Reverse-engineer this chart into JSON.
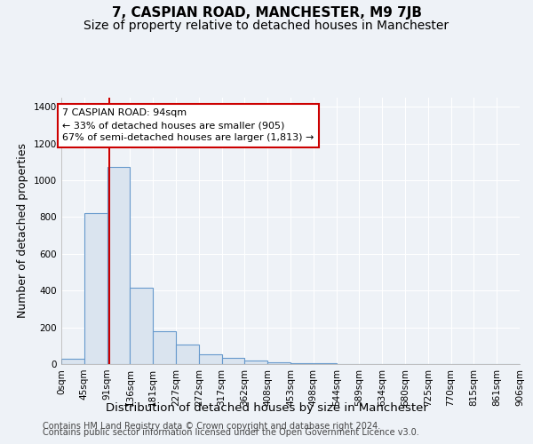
{
  "title": "7, CASPIAN ROAD, MANCHESTER, M9 7JB",
  "subtitle": "Size of property relative to detached houses in Manchester",
  "xlabel": "Distribution of detached houses by size in Manchester",
  "ylabel": "Number of detached properties",
  "bin_edges": [
    0,
    45,
    91,
    136,
    181,
    227,
    272,
    317,
    362,
    408,
    453,
    498,
    544,
    589,
    634,
    680,
    725,
    770,
    815,
    861,
    906
  ],
  "bar_heights": [
    30,
    820,
    1075,
    415,
    180,
    105,
    55,
    35,
    20,
    10,
    5,
    3,
    2,
    2,
    1,
    1,
    1,
    1,
    1,
    1
  ],
  "bar_color": "#dae4ef",
  "bar_edge_color": "#6699cc",
  "property_size": 94,
  "red_line_color": "#cc0000",
  "annotation_text": "7 CASPIAN ROAD: 94sqm\n← 33% of detached houses are smaller (905)\n67% of semi-detached houses are larger (1,813) →",
  "annotation_box_color": "#ffffff",
  "annotation_box_edge_color": "#cc0000",
  "ylim": [
    0,
    1450
  ],
  "yticks": [
    0,
    200,
    400,
    600,
    800,
    1000,
    1200,
    1400
  ],
  "tick_labels": [
    "0sqm",
    "45sqm",
    "91sqm",
    "136sqm",
    "181sqm",
    "227sqm",
    "272sqm",
    "317sqm",
    "362sqm",
    "408sqm",
    "453sqm",
    "498sqm",
    "544sqm",
    "589sqm",
    "634sqm",
    "680sqm",
    "725sqm",
    "770sqm",
    "815sqm",
    "861sqm",
    "906sqm"
  ],
  "footer_line1": "Contains HM Land Registry data © Crown copyright and database right 2024.",
  "footer_line2": "Contains public sector information licensed under the Open Government Licence v3.0.",
  "bg_color": "#eef2f7",
  "grid_color": "#ffffff",
  "title_fontsize": 11,
  "subtitle_fontsize": 10,
  "axis_label_fontsize": 9,
  "tick_fontsize": 7.5,
  "footer_fontsize": 7
}
